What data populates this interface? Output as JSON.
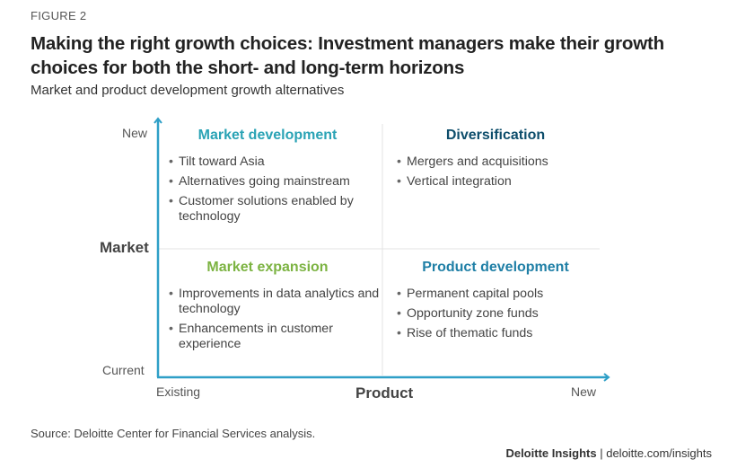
{
  "figure_label": "FIGURE 2",
  "title": "Making the right growth choices: Investment managers make their growth choices for both the short- and long-term horizons",
  "subtitle": "Market and product development growth alternatives",
  "axes": {
    "y_title": "Market",
    "y_top": "New",
    "y_bottom": "Current",
    "x_title": "Product",
    "x_left": "Existing",
    "x_right": "New"
  },
  "quadrants": {
    "market_development": {
      "title": "Market development",
      "color": "#2aa3b5",
      "items": [
        "Tilt toward Asia",
        "Alternatives going mainstream",
        "Customer solutions enabled by technology"
      ]
    },
    "diversification": {
      "title": "Diversification",
      "color": "#0d4d6b",
      "items": [
        "Mergers and acquisitions",
        "Vertical integration"
      ]
    },
    "market_expansion": {
      "title": "Market expansion",
      "color": "#7cb342",
      "items": [
        "Improvements in data analytics and technology",
        "Enhancements in customer experience"
      ]
    },
    "product_development": {
      "title": "Product development",
      "color": "#1f7fa6",
      "items": [
        "Permanent capital pools",
        "Opportunity zone funds",
        "Rise of thematic funds"
      ]
    }
  },
  "axis_color": "#2e9fc7",
  "source": "Source: Deloitte Center for Financial Services analysis.",
  "footer": {
    "brand": "Deloitte Insights",
    "separator": "|",
    "url": "deloitte.com/insights"
  }
}
